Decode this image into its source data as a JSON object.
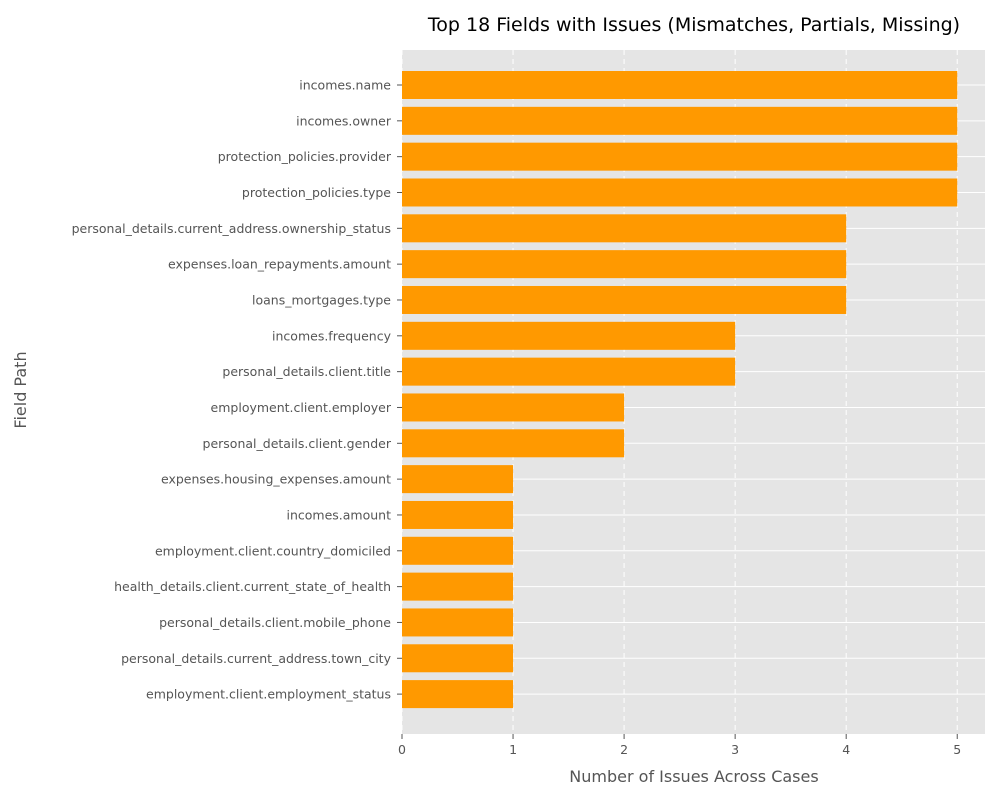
{
  "chart_data": {
    "type": "bar",
    "orientation": "horizontal",
    "title": "Top 18 Fields with Issues (Mismatches, Partials, Missing)",
    "xlabel": "Number of Issues Across Cases",
    "ylabel": "Field Path",
    "xlim": [
      0,
      5.25
    ],
    "xticks": [
      0,
      1,
      2,
      3,
      4,
      5
    ],
    "grid": true,
    "bar_color": "#ff9900",
    "background_color": "#e5e5e5",
    "categories": [
      "incomes.name",
      "incomes.owner",
      "protection_policies.provider",
      "protection_policies.type",
      "personal_details.current_address.ownership_status",
      "expenses.loan_repayments.amount",
      "loans_mortgages.type",
      "incomes.frequency",
      "personal_details.client.title",
      "employment.client.employer",
      "personal_details.client.gender",
      "expenses.housing_expenses.amount",
      "incomes.amount",
      "employment.client.country_domiciled",
      "health_details.client.current_state_of_health",
      "personal_details.client.mobile_phone",
      "personal_details.current_address.town_city",
      "employment.client.employment_status"
    ],
    "values": [
      5,
      5,
      5,
      5,
      4,
      4,
      4,
      3,
      3,
      2,
      2,
      1,
      1,
      1,
      1,
      1,
      1,
      1
    ]
  }
}
